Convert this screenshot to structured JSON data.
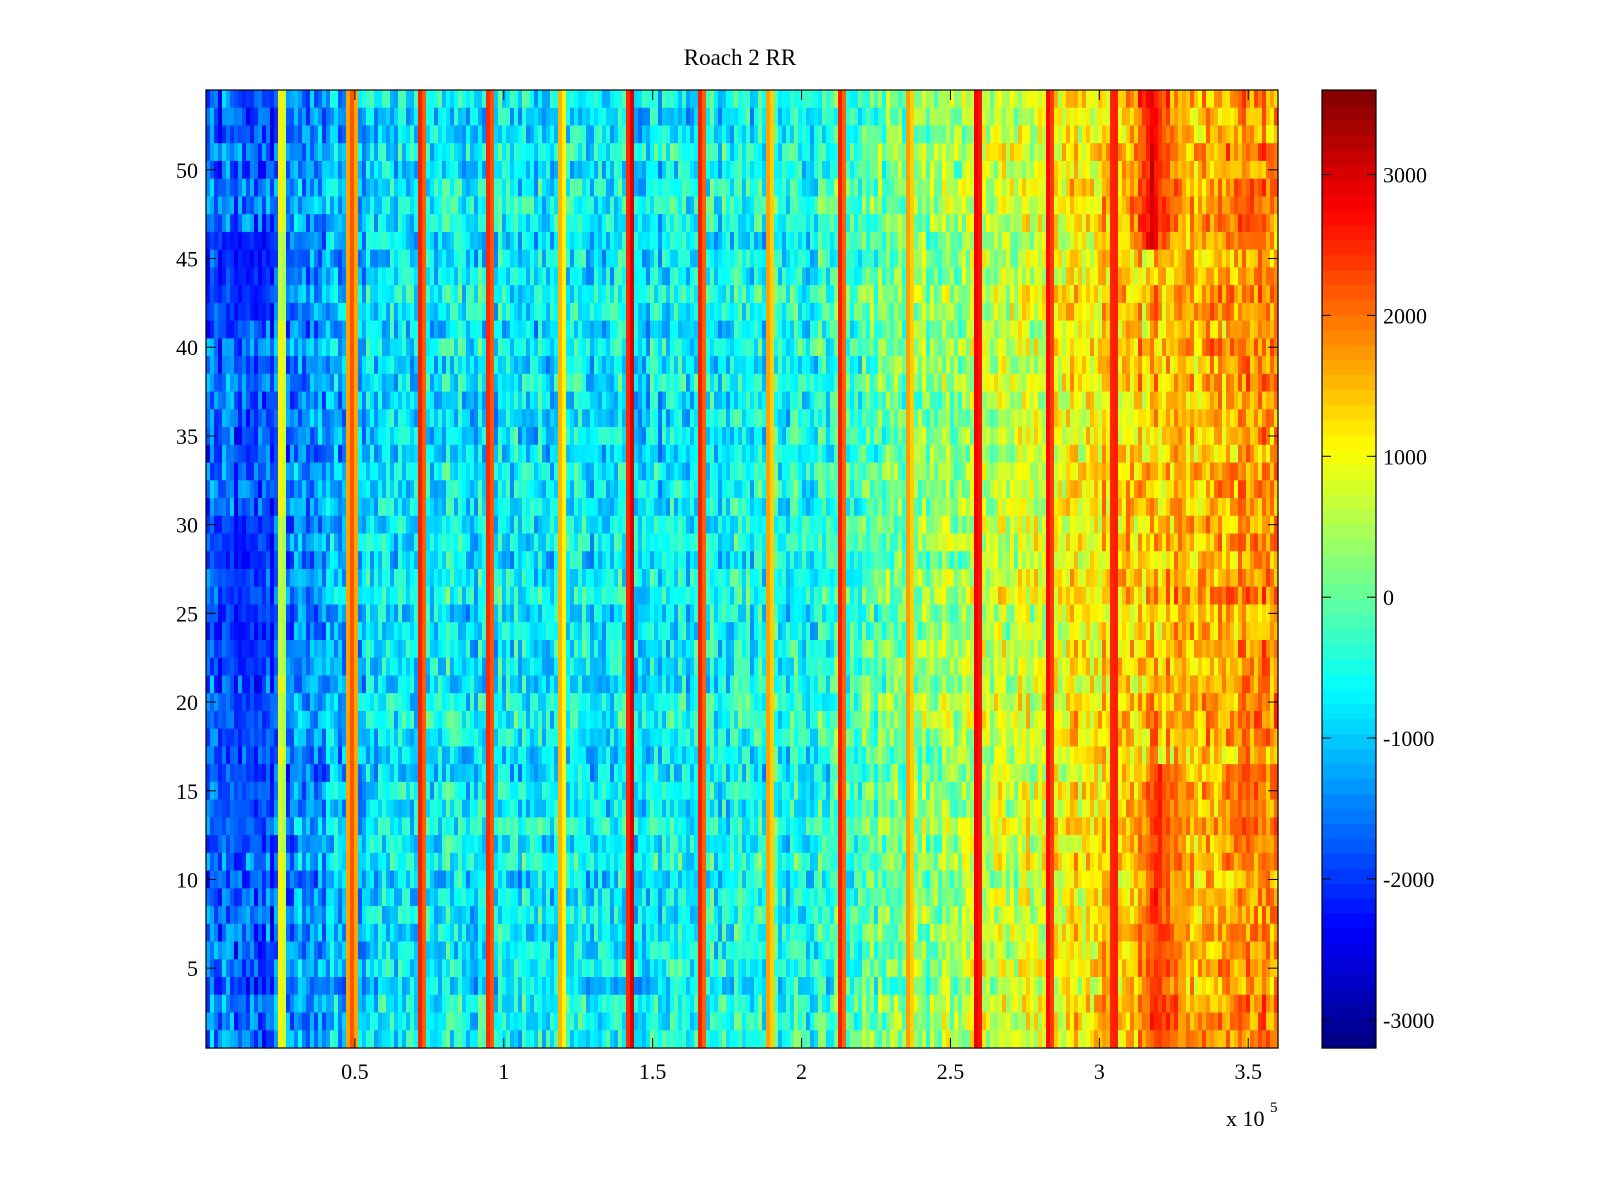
{
  "chart_data": {
    "type": "heatmap",
    "title": "Roach 2 RR",
    "xlabel": "",
    "ylabel": "",
    "x_range": [
      0,
      360000
    ],
    "y_range": [
      0.5,
      54.5
    ],
    "x_ticks": [
      50000,
      100000,
      150000,
      200000,
      250000,
      300000,
      350000
    ],
    "x_tick_labels": [
      "0.5",
      "1",
      "1.5",
      "2",
      "2.5",
      "3",
      "3.5"
    ],
    "x_exponent_label": "x 10",
    "x_exponent_power": "5",
    "y_ticks": [
      5,
      10,
      15,
      20,
      25,
      30,
      35,
      40,
      45,
      50
    ],
    "y_tick_labels": [
      "5",
      "10",
      "15",
      "20",
      "25",
      "30",
      "35",
      "40",
      "45",
      "50"
    ],
    "rows": 54,
    "colorbar": {
      "range": [
        -3200,
        3600
      ],
      "colormap": "jet",
      "ticks": [
        -3000,
        -2000,
        -1000,
        0,
        1000,
        2000,
        3000
      ],
      "tick_labels": [
        "-3000",
        "-2000",
        "-1000",
        "0",
        "1000",
        "2000",
        "3000"
      ]
    },
    "trend_x": [
      0,
      20000,
      50000,
      80000,
      110000,
      150000,
      200000,
      250000,
      280000,
      300000,
      330000,
      360000
    ],
    "trend_values": [
      -1700,
      -1800,
      -900,
      -700,
      -700,
      -700,
      -500,
      400,
      800,
      1300,
      1500,
      1800
    ],
    "vertical_bands_x": [
      25000,
      49000,
      72000,
      95000,
      119000,
      143000,
      166000,
      189000,
      213000,
      236000,
      259000,
      283000,
      305000,
      328000,
      352000
    ],
    "vertical_band_values": [
      1200,
      2200,
      2600,
      2600,
      1600,
      3000,
      2600,
      1800,
      2600,
      1800,
      3000,
      2800,
      2800,
      1800,
      1600
    ],
    "hotspots": [
      {
        "x": 318000,
        "y_from": 1,
        "y_to": 9,
        "value": 3300
      },
      {
        "x": 320000,
        "y_from": 39,
        "y_to": 54,
        "value": 2800
      },
      {
        "x": 350000,
        "y_from": 6,
        "y_to": 9,
        "value": 2400
      },
      {
        "x": 350000,
        "y_from": 39,
        "y_to": 43,
        "value": 2300
      }
    ],
    "coldspots": [
      {
        "x": 12000,
        "y_from": 9,
        "y_to": 13,
        "value": -2400
      },
      {
        "x": 12000,
        "y_from": 25,
        "y_to": 33,
        "value": -2300
      },
      {
        "x": 12000,
        "y_from": 35,
        "y_to": 37,
        "value": -2100
      },
      {
        "x": 12000,
        "y_from": 39,
        "y_to": 43,
        "value": -1900
      }
    ]
  }
}
